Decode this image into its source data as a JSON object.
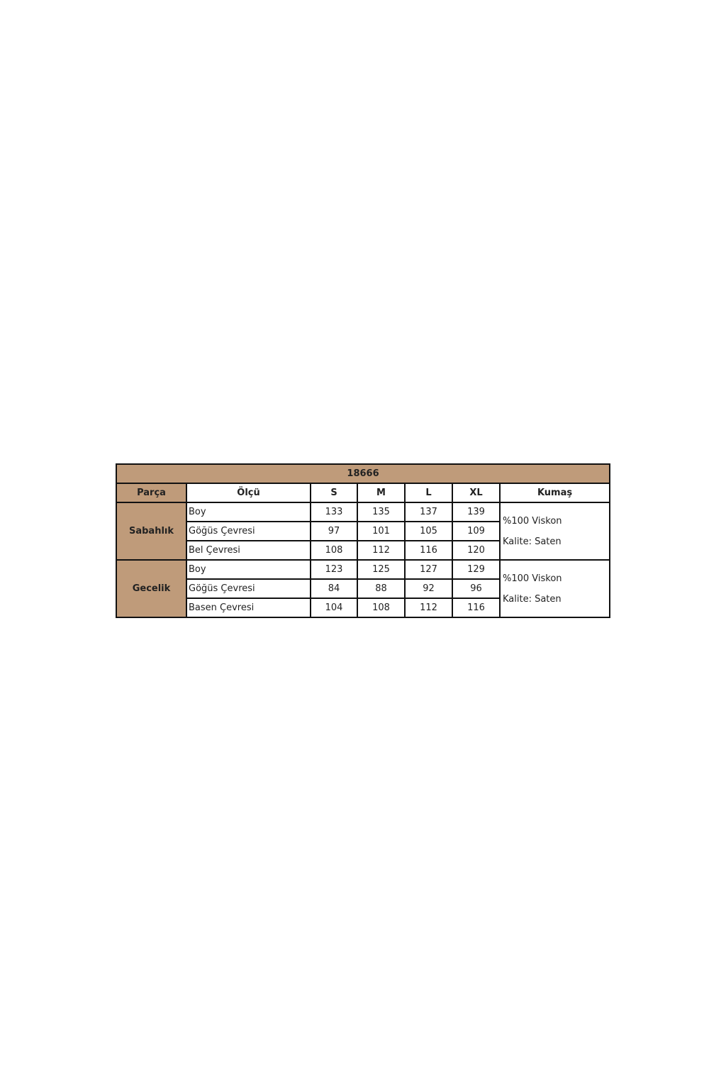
{
  "table": {
    "title": "18666",
    "headers": [
      "Parça",
      "Ölçü",
      "S",
      "M",
      "L",
      "XL",
      "Kumaş"
    ],
    "groups": [
      {
        "part": "Sabahlık",
        "rows": [
          {
            "measure": "Boy",
            "values": [
              "133",
              "135",
              "137",
              "139"
            ]
          },
          {
            "measure": "Göğüs Çevresi",
            "values": [
              "97",
              "101",
              "105",
              "109"
            ]
          },
          {
            "measure": "Bel Çevresi",
            "values": [
              "108",
              "112",
              "116",
              "120"
            ]
          }
        ],
        "fabric": [
          "%100 Viskon",
          "Kalite: Saten"
        ]
      },
      {
        "part": "Gecelik",
        "rows": [
          {
            "measure": "Boy",
            "values": [
              "123",
              "125",
              "127",
              "129"
            ]
          },
          {
            "measure": "Göğüs Çevresi",
            "values": [
              "84",
              "88",
              "92",
              "96"
            ]
          },
          {
            "measure": "Basen Çevresi",
            "values": [
              "104",
              "108",
              "112",
              "116"
            ]
          }
        ],
        "fabric": [
          "%100 Viskon",
          "Kalite: Saten"
        ]
      }
    ],
    "colors": {
      "header_fill": "#bf9b7a",
      "border": "#111111"
    }
  }
}
